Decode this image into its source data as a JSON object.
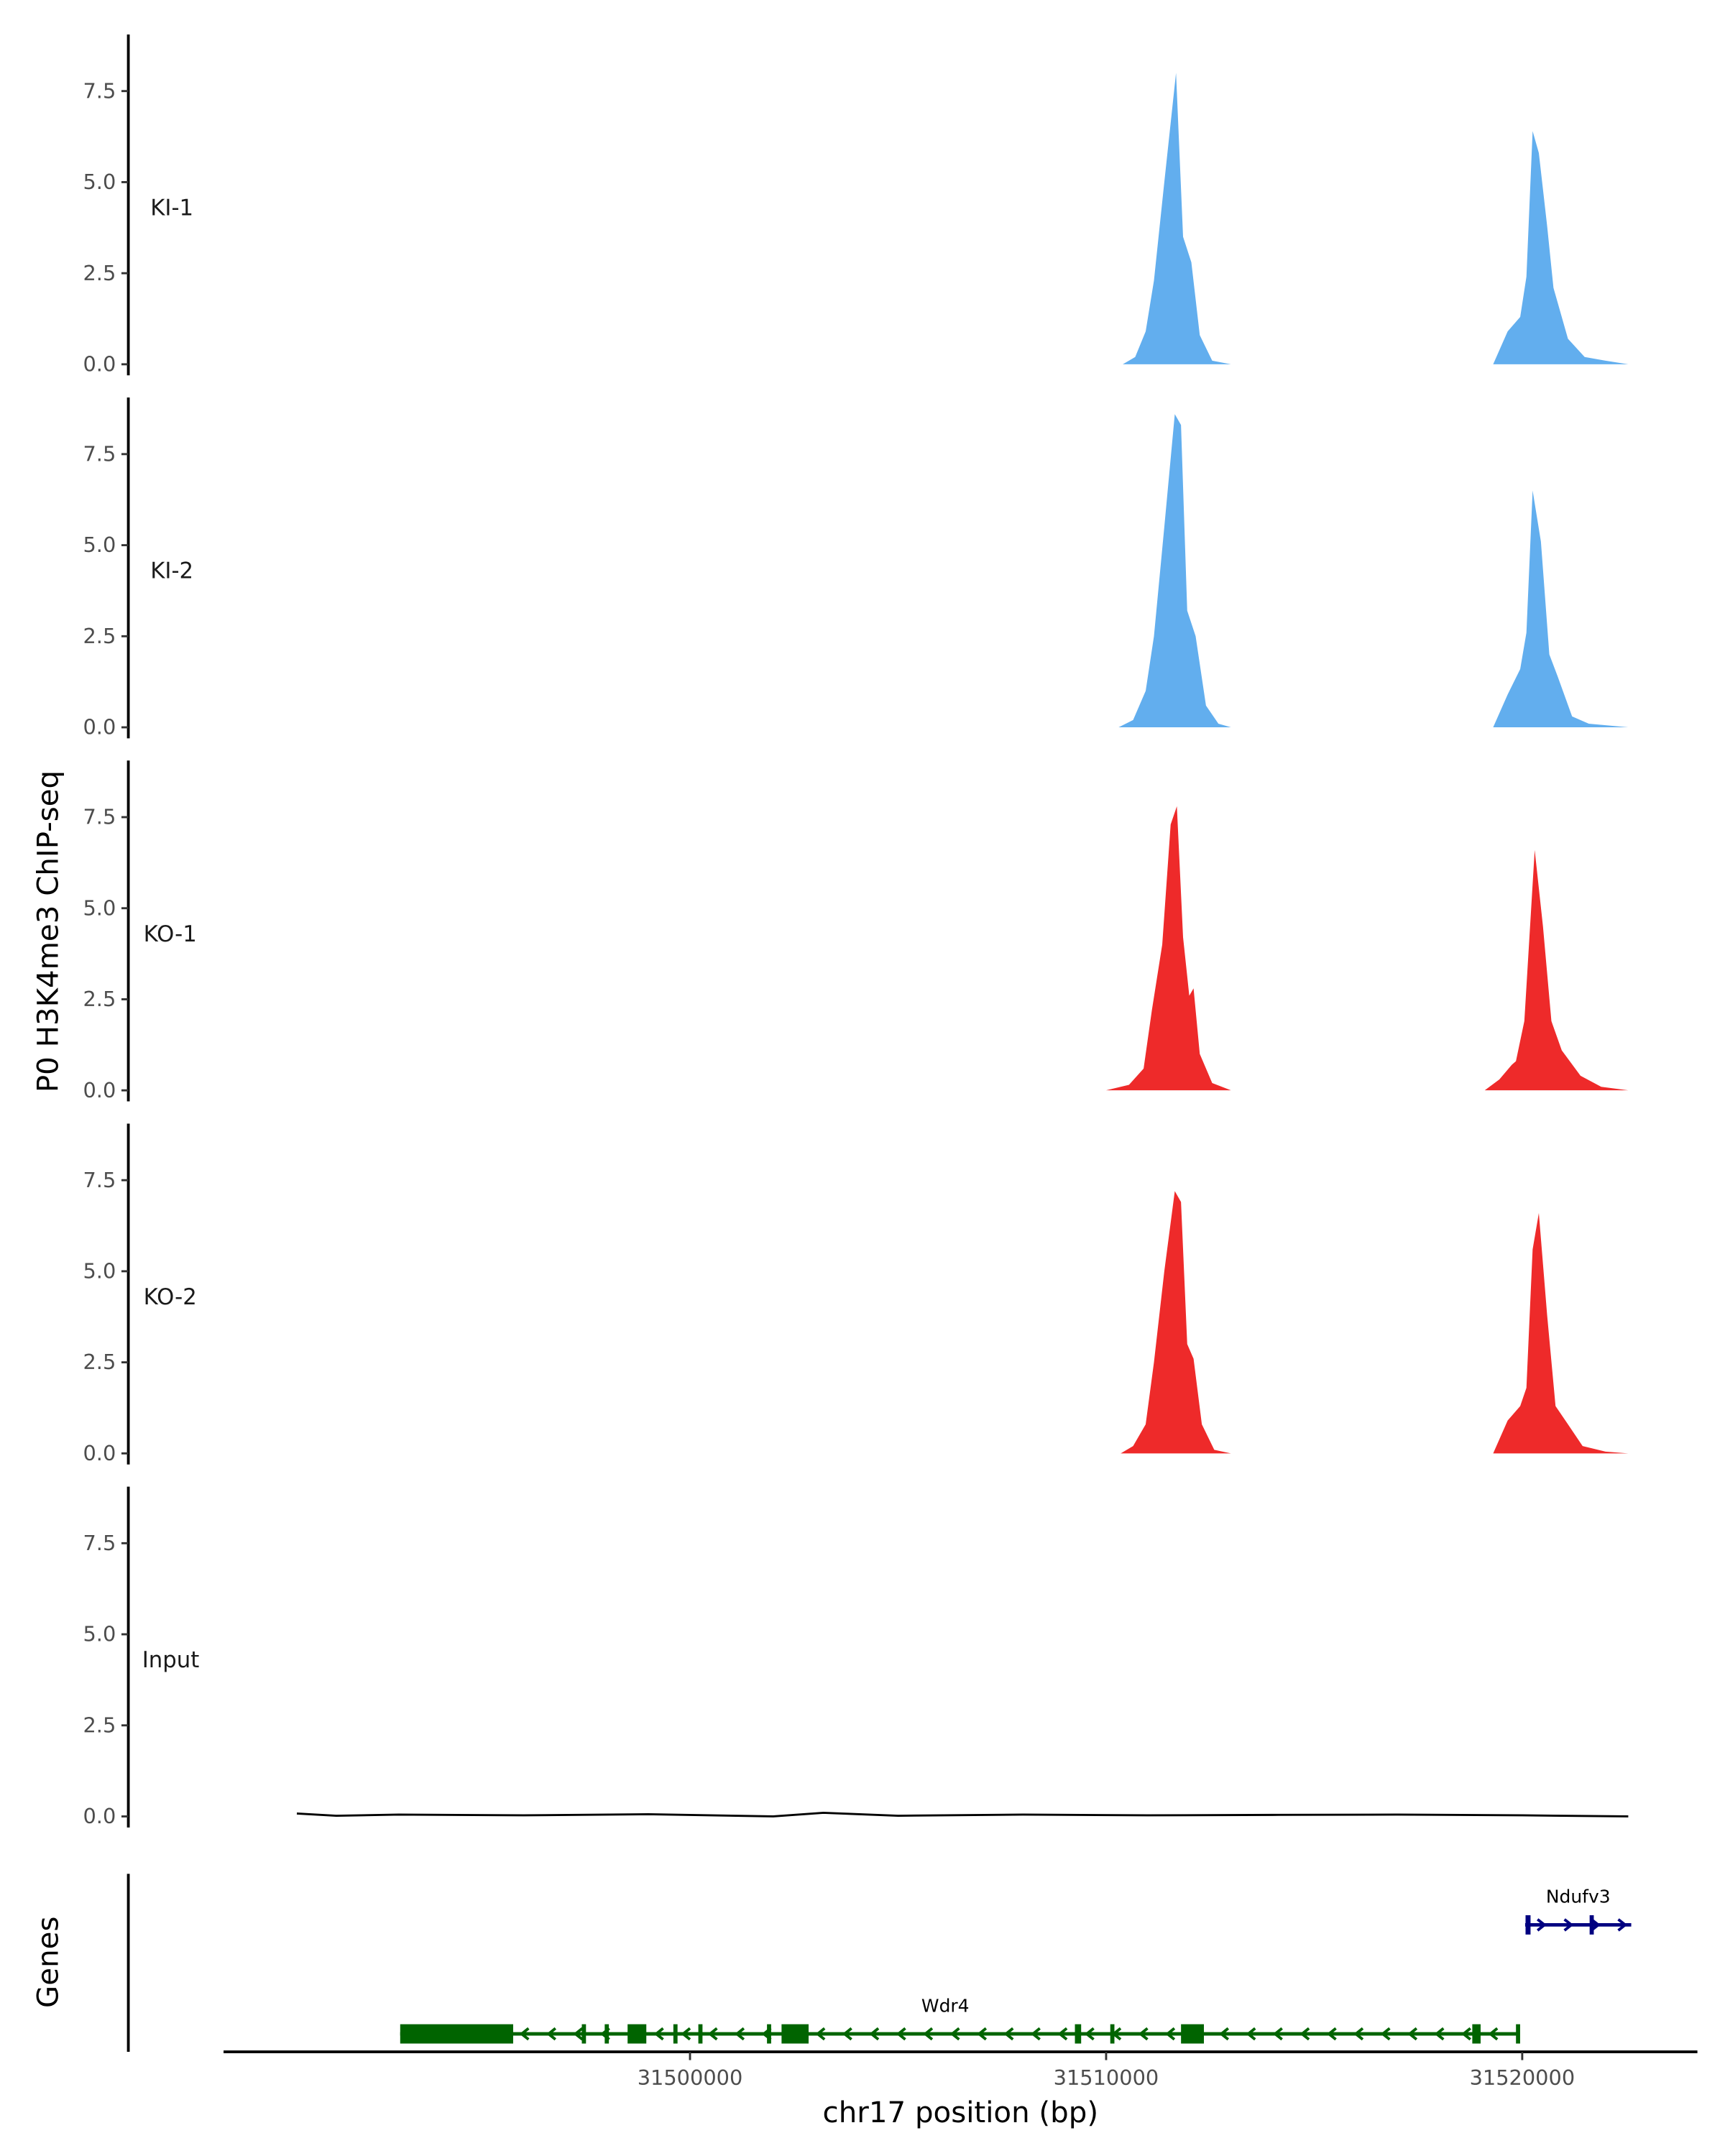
{
  "chart_data": {
    "type": "area",
    "ylabel": "P0 H3K4me3 ChIP-seq",
    "xlabel": "chr17 position (bp)",
    "xlim": [
      31488790,
      31524210
    ],
    "ylim": [
      -0.3,
      9.1
    ],
    "xticks": [
      31500000,
      31510000,
      31520000
    ],
    "xtick_labels": [
      "31500000",
      "31510000",
      "31520000"
    ],
    "yticks": [
      0,
      2.5,
      5,
      7.5
    ],
    "ytick_labels": [
      "0.0",
      "2.5",
      "5.0",
      "7.5"
    ],
    "grid": false,
    "tracks": [
      {
        "name": "KI-1",
        "color": "#62AEEE",
        "points": [
          [
            31490550,
            0
          ],
          [
            31510400,
            0
          ],
          [
            31510700,
            0.2
          ],
          [
            31510950,
            0.9
          ],
          [
            31511150,
            2.3
          ],
          [
            31511400,
            5.0
          ],
          [
            31511680,
            8.0
          ],
          [
            31511850,
            3.5
          ],
          [
            31512050,
            2.8
          ],
          [
            31512250,
            0.8
          ],
          [
            31512550,
            0.1
          ],
          [
            31513000,
            0
          ],
          [
            31519300,
            0
          ],
          [
            31519650,
            0.9
          ],
          [
            31519950,
            1.3
          ],
          [
            31520100,
            2.4
          ],
          [
            31520250,
            6.4
          ],
          [
            31520400,
            5.8
          ],
          [
            31520600,
            3.8
          ],
          [
            31520750,
            2.1
          ],
          [
            31521100,
            0.7
          ],
          [
            31521500,
            0.2
          ],
          [
            31522000,
            0.1
          ],
          [
            31522550,
            0
          ]
        ]
      },
      {
        "name": "KI-2",
        "color": "#62AEEE",
        "points": [
          [
            31490550,
            0
          ],
          [
            31510300,
            0
          ],
          [
            31510650,
            0.2
          ],
          [
            31510950,
            1.0
          ],
          [
            31511150,
            2.5
          ],
          [
            31511400,
            5.5
          ],
          [
            31511650,
            8.6
          ],
          [
            31511800,
            8.3
          ],
          [
            31511950,
            3.2
          ],
          [
            31512150,
            2.5
          ],
          [
            31512400,
            0.6
          ],
          [
            31512700,
            0.1
          ],
          [
            31513000,
            0
          ],
          [
            31519300,
            0
          ],
          [
            31519650,
            0.9
          ],
          [
            31519950,
            1.6
          ],
          [
            31520100,
            2.6
          ],
          [
            31520250,
            6.5
          ],
          [
            31520450,
            5.1
          ],
          [
            31520650,
            2.0
          ],
          [
            31520850,
            1.4
          ],
          [
            31521200,
            0.3
          ],
          [
            31521600,
            0.1
          ],
          [
            31522550,
            0
          ]
        ]
      },
      {
        "name": "KO-1",
        "color": "#EE2A2A",
        "points": [
          [
            31490550,
            0
          ],
          [
            31510000,
            0.0
          ],
          [
            31510550,
            0.15
          ],
          [
            31510900,
            0.6
          ],
          [
            31511100,
            2.2
          ],
          [
            31511350,
            4.0
          ],
          [
            31511550,
            7.3
          ],
          [
            31511700,
            7.8
          ],
          [
            31511850,
            4.2
          ],
          [
            31512000,
            2.6
          ],
          [
            31512100,
            2.8
          ],
          [
            31512250,
            1.0
          ],
          [
            31512550,
            0.2
          ],
          [
            31513000,
            0
          ],
          [
            31519100,
            0
          ],
          [
            31519450,
            0.3
          ],
          [
            31519750,
            0.7
          ],
          [
            31519850,
            0.8
          ],
          [
            31520050,
            1.9
          ],
          [
            31520300,
            6.6
          ],
          [
            31520500,
            4.5
          ],
          [
            31520700,
            1.9
          ],
          [
            31520950,
            1.1
          ],
          [
            31521400,
            0.4
          ],
          [
            31521900,
            0.1
          ],
          [
            31522550,
            0
          ]
        ]
      },
      {
        "name": "KO-2",
        "color": "#EE2A2A",
        "points": [
          [
            31490550,
            0
          ],
          [
            31510350,
            0
          ],
          [
            31510650,
            0.2
          ],
          [
            31510950,
            0.8
          ],
          [
            31511150,
            2.5
          ],
          [
            31511400,
            5.0
          ],
          [
            31511650,
            7.2
          ],
          [
            31511800,
            6.9
          ],
          [
            31511950,
            3.0
          ],
          [
            31512100,
            2.6
          ],
          [
            31512300,
            0.8
          ],
          [
            31512600,
            0.1
          ],
          [
            31513000,
            0
          ],
          [
            31519300,
            0
          ],
          [
            31519650,
            0.9
          ],
          [
            31519950,
            1.3
          ],
          [
            31520100,
            1.8
          ],
          [
            31520250,
            5.6
          ],
          [
            31520400,
            6.6
          ],
          [
            31520600,
            3.8
          ],
          [
            31520800,
            1.3
          ],
          [
            31521100,
            0.8
          ],
          [
            31521450,
            0.2
          ],
          [
            31522000,
            0.05
          ],
          [
            31522550,
            0
          ]
        ]
      },
      {
        "name": "Input",
        "color": "#000000",
        "points": [
          [
            31490550,
            0.08
          ],
          [
            31491500,
            0.02
          ],
          [
            31493000,
            0.05
          ],
          [
            31496000,
            0.03
          ],
          [
            31499000,
            0.06
          ],
          [
            31502000,
            0.0
          ],
          [
            31503200,
            0.1
          ],
          [
            31505000,
            0.02
          ],
          [
            31508000,
            0.05
          ],
          [
            31511000,
            0.03
          ],
          [
            31514000,
            0.04
          ],
          [
            31517000,
            0.05
          ],
          [
            31520000,
            0.03
          ],
          [
            31522550,
            0.0
          ]
        ]
      }
    ],
    "genes_label": "Genes",
    "genes": [
      {
        "name": "Wdr4",
        "strand": "-",
        "color": "#006400",
        "start": 31493035,
        "end": 31519900,
        "exons": [
          [
            31493035,
            31495750
          ],
          [
            31497400,
            31497500
          ],
          [
            31497950,
            31498050
          ],
          [
            31498500,
            31498950
          ],
          [
            31499600,
            31499700
          ],
          [
            31500200,
            31500300
          ],
          [
            31501850,
            31501950
          ],
          [
            31502200,
            31502850
          ],
          [
            31509250,
            31509400
          ],
          [
            31510100,
            31510150
          ],
          [
            31511800,
            31512350
          ],
          [
            31518800,
            31519000
          ],
          [
            31519850,
            31519900
          ]
        ]
      },
      {
        "name": "Ndufv3",
        "strand": "+",
        "color": "#000080",
        "start": 31520070,
        "end": 31522620,
        "exons": [
          [
            31520080,
            31520200
          ],
          [
            31521620,
            31521720
          ]
        ]
      }
    ]
  }
}
